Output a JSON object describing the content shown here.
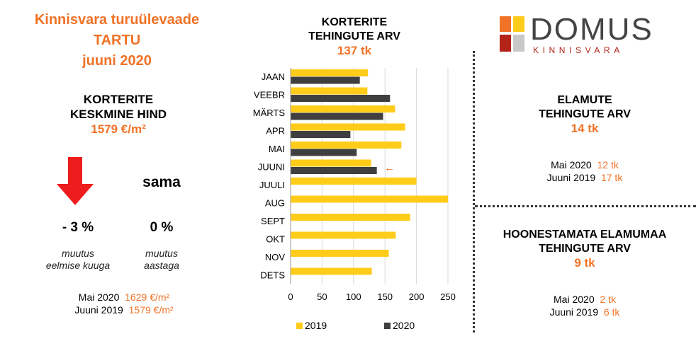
{
  "header": {
    "line1": "Kinnisvara turuülevaade",
    "line2": "TARTU",
    "line3": "juuni 2020"
  },
  "price": {
    "label1": "KORTERITE",
    "label2": "KESKMINE HIND",
    "value": "1579 €/m²"
  },
  "change": {
    "month_value": "- 3 %",
    "month_caption1": "muutus",
    "month_caption2": "eelmise kuuga",
    "year_word": "sama",
    "year_value": "0 %",
    "year_caption1": "muutus",
    "year_caption2": "aastaga"
  },
  "price_compare": {
    "row1_label": "Mai 2020",
    "row1_value": "1629 €/m²",
    "row2_label": "Juuni 2019",
    "row2_value": "1579 €/m²"
  },
  "chart_header": {
    "line1": "KORTERITE",
    "line2": "TEHINGUTE ARV",
    "value": "137 tk"
  },
  "chart_data": {
    "type": "bar",
    "orientation": "horizontal",
    "categories": [
      "JAAN",
      "VEEBR",
      "MÄRTS",
      "APR",
      "MAI",
      "JUUNI",
      "JUULI",
      "AUG",
      "SEPT",
      "OKT",
      "NOV",
      "DETS"
    ],
    "series": [
      {
        "name": "2019",
        "color": "#ffcc1a",
        "values": [
          123,
          122,
          166,
          182,
          176,
          128,
          200,
          250,
          190,
          167,
          156,
          129
        ]
      },
      {
        "name": "2020",
        "color": "#3f3f3f",
        "values": [
          110,
          158,
          147,
          95,
          105,
          137,
          null,
          null,
          null,
          null,
          null,
          null
        ]
      }
    ],
    "xlim": [
      0,
      250
    ],
    "xticks": [
      0,
      50,
      100,
      150,
      200,
      250
    ],
    "grid": "vertical",
    "legend": "bottom",
    "annotation": {
      "category": "JUUNI",
      "symbol": "←",
      "color": "#f07226"
    }
  },
  "logo": {
    "name": "DOMUS",
    "sub": "KINNISVARA",
    "colors": [
      "#f07226",
      "#ffcc1a",
      "#b32318",
      "#c8c8c8"
    ]
  },
  "elamute": {
    "line1": "ELAMUTE",
    "line2": "TEHINGUTE ARV",
    "value": "14 tk",
    "row1_label": "Mai 2020",
    "row1_value": "12 tk",
    "row2_label": "Juuni 2019",
    "row2_value": "17 tk"
  },
  "hoonestamata": {
    "line1": "HOONESTAMATA ELAMUMAA",
    "line2": "TEHINGUTE ARV",
    "value": "9 tk",
    "row1_label": "Mai 2020",
    "row1_value": "2 tk",
    "row2_label": "Juuni 2019",
    "row2_value": "6 tk"
  },
  "colors": {
    "accent": "#f07226",
    "arrow": "#ee1c1c",
    "bar2019": "#ffcc1a",
    "bar2020": "#3f3f3f"
  }
}
